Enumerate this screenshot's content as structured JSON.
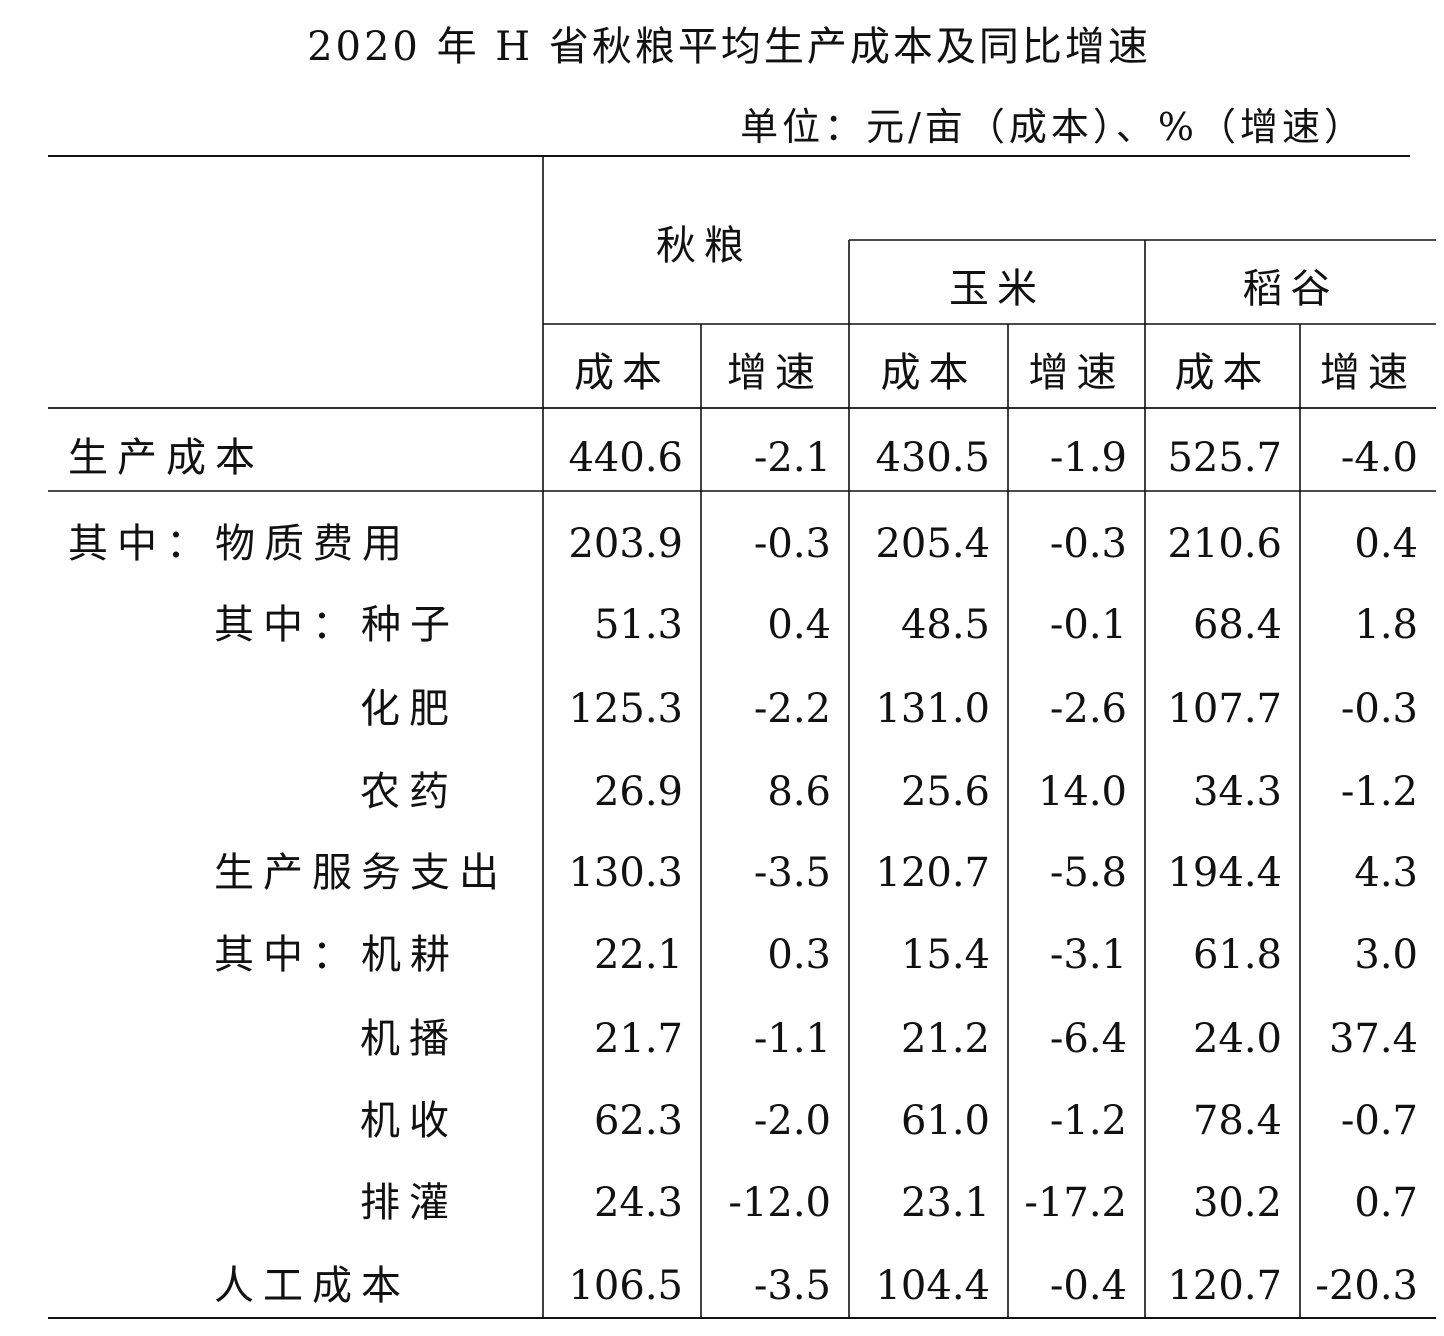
{
  "title": "2020 年 H 省秋粮平均生产成本及同比增速",
  "unit": "单位：元/亩（成本）、%（增速）",
  "chart_data": {
    "type": "table",
    "groups": [
      "秋粮",
      "玉米",
      "稻谷"
    ],
    "subheaders": [
      "成本",
      "增速",
      "成本",
      "增速",
      "成本",
      "增速"
    ],
    "rows": [
      {
        "label": "生产成本",
        "indent": 0,
        "values": [
          "440.6",
          "-2.1",
          "430.5",
          "-1.9",
          "525.7",
          "-4.0"
        ]
      },
      {
        "label": "其中：物质费用",
        "indent": 0,
        "values": [
          "203.9",
          "-0.3",
          "205.4",
          "-0.3",
          "210.6",
          "0.4"
        ]
      },
      {
        "label": "其中：种子",
        "indent": 1,
        "values": [
          "51.3",
          "0.4",
          "48.5",
          "-0.1",
          "68.4",
          "1.8"
        ]
      },
      {
        "label": "化肥",
        "indent": 2,
        "values": [
          "125.3",
          "-2.2",
          "131.0",
          "-2.6",
          "107.7",
          "-0.3"
        ]
      },
      {
        "label": "农药",
        "indent": 2,
        "values": [
          "26.9",
          "8.6",
          "25.6",
          "14.0",
          "34.3",
          "-1.2"
        ]
      },
      {
        "label": "生产服务支出",
        "indent": 1,
        "values": [
          "130.3",
          "-3.5",
          "120.7",
          "-5.8",
          "194.4",
          "4.3"
        ]
      },
      {
        "label": "其中：机耕",
        "indent": 1,
        "values": [
          "22.1",
          "0.3",
          "15.4",
          "-3.1",
          "61.8",
          "3.0"
        ]
      },
      {
        "label": "机播",
        "indent": 2,
        "values": [
          "21.7",
          "-1.1",
          "21.2",
          "-6.4",
          "24.0",
          "37.4"
        ]
      },
      {
        "label": "机收",
        "indent": 2,
        "values": [
          "62.3",
          "-2.0",
          "61.0",
          "-1.2",
          "78.4",
          "-0.7"
        ]
      },
      {
        "label": "排灌",
        "indent": 2,
        "values": [
          "24.3",
          "-12.0",
          "23.1",
          "-17.2",
          "30.2",
          "0.7"
        ]
      },
      {
        "label": "人工成本",
        "indent": 1,
        "values": [
          "106.5",
          "-3.5",
          "104.4",
          "-0.4",
          "120.7",
          "-20.3"
        ]
      }
    ]
  }
}
